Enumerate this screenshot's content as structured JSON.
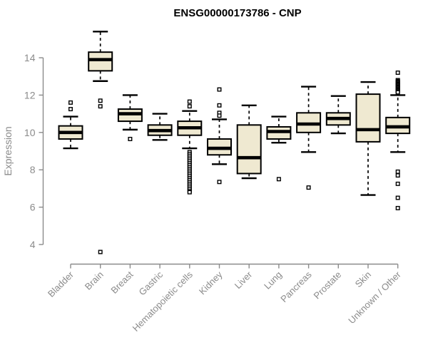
{
  "title": "ENSG00000173786 - CNP",
  "y_axis": {
    "label": "Expression"
  },
  "chart_data": {
    "type": "boxplot",
    "title": "ENSG00000173786 - CNP",
    "xlabel": "",
    "ylabel": "Expression",
    "ylim": [
      3.3,
      15.6
    ],
    "yticks": [
      4,
      6,
      8,
      10,
      12,
      14
    ],
    "grid": false,
    "legend": "none",
    "categories": [
      "Bladder",
      "Brain",
      "Breast",
      "Gastric",
      "Hematopoietic cells",
      "Kidney",
      "Liver",
      "Lung",
      "Pancreas",
      "Prostate",
      "Skin",
      "Unknown / Other"
    ],
    "series": [
      {
        "name": "Bladder",
        "low": 9.15,
        "q1": 9.65,
        "median": 10.0,
        "q3": 10.35,
        "high": 10.85,
        "outliers": [
          11.6,
          11.25
        ]
      },
      {
        "name": "Brain",
        "low": 12.75,
        "q1": 13.3,
        "median": 13.9,
        "q3": 14.3,
        "high": 15.4,
        "outliers": [
          11.7,
          11.4,
          3.6
        ]
      },
      {
        "name": "Breast",
        "low": 10.15,
        "q1": 10.6,
        "median": 11.0,
        "q3": 11.25,
        "high": 12.0,
        "outliers": [
          9.65
        ]
      },
      {
        "name": "Gastric",
        "low": 9.6,
        "q1": 9.85,
        "median": 10.1,
        "q3": 10.4,
        "high": 11.0,
        "outliers": []
      },
      {
        "name": "Hematopoietic cells",
        "low": 9.15,
        "q1": 9.85,
        "median": 10.25,
        "q3": 10.6,
        "high": 11.15,
        "outliers": [
          11.65,
          11.4,
          8.95,
          8.85,
          8.75,
          8.65,
          8.55,
          8.45,
          8.35,
          8.25,
          8.15,
          8.05,
          7.95,
          7.85,
          7.75,
          7.65,
          7.55,
          7.45,
          7.35,
          7.25,
          7.15,
          7.05,
          6.95,
          6.85,
          6.8
        ]
      },
      {
        "name": "Kidney",
        "low": 8.3,
        "q1": 8.8,
        "median": 9.15,
        "q3": 9.65,
        "high": 10.7,
        "outliers": [
          12.3,
          11.45,
          11.05,
          10.9,
          7.35
        ]
      },
      {
        "name": "Liver",
        "low": 7.55,
        "q1": 7.8,
        "median": 8.65,
        "q3": 10.4,
        "high": 11.45,
        "outliers": []
      },
      {
        "name": "Lung",
        "low": 9.45,
        "q1": 9.65,
        "median": 10.05,
        "q3": 10.3,
        "high": 10.85,
        "outliers": [
          7.5
        ]
      },
      {
        "name": "Pancreas",
        "low": 8.95,
        "q1": 10.0,
        "median": 10.45,
        "q3": 11.05,
        "high": 12.45,
        "outliers": [
          7.05
        ]
      },
      {
        "name": "Prostate",
        "low": 9.95,
        "q1": 10.4,
        "median": 10.75,
        "q3": 11.05,
        "high": 11.95,
        "outliers": []
      },
      {
        "name": "Skin",
        "low": 6.65,
        "q1": 9.5,
        "median": 10.15,
        "q3": 12.05,
        "high": 12.7,
        "outliers": []
      },
      {
        "name": "Unknown / Other",
        "low": 8.95,
        "q1": 9.95,
        "median": 10.3,
        "q3": 10.8,
        "high": 12.0,
        "outliers": [
          13.2,
          12.8,
          12.75,
          12.7,
          12.65,
          12.6,
          12.55,
          12.5,
          12.45,
          12.4,
          12.35,
          12.3,
          12.25,
          12.2,
          12.15,
          7.9,
          7.7,
          7.25,
          6.5,
          5.95
        ]
      }
    ]
  },
  "style": {
    "box_fill": "#EFE9D1",
    "box_stroke": "#000000",
    "median_color": "#000000",
    "axis_color": "#8B8B8B",
    "label_color": "#8B8B8B",
    "title_color": "#000000",
    "background": "#FFFFFF"
  }
}
